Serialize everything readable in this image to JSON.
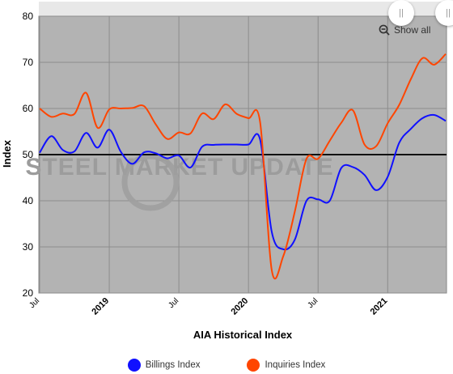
{
  "chart_data": {
    "type": "line",
    "title": "",
    "xlabel": "AIA Historical Index",
    "ylabel": "Index",
    "ylim": [
      20,
      80
    ],
    "yticks": [
      20,
      30,
      40,
      50,
      60,
      70,
      80
    ],
    "reference_line": 50,
    "grid": true,
    "legend_position": "bottom",
    "watermark": "STEEL MARKET UPDATE",
    "x_tick_labels": [
      {
        "label": "Jul",
        "major": false
      },
      {
        "label": "2019",
        "major": true
      },
      {
        "label": "Jul",
        "major": false
      },
      {
        "label": "2020",
        "major": true
      },
      {
        "label": "Jul",
        "major": false
      },
      {
        "label": "2021",
        "major": true
      }
    ],
    "x": [
      "2018-07",
      "2018-08",
      "2018-09",
      "2018-10",
      "2018-11",
      "2018-12",
      "2019-01",
      "2019-02",
      "2019-03",
      "2019-04",
      "2019-05",
      "2019-06",
      "2019-07",
      "2019-08",
      "2019-09",
      "2019-10",
      "2019-11",
      "2019-12",
      "2020-01",
      "2020-02",
      "2020-03",
      "2020-04",
      "2020-05",
      "2020-06",
      "2020-07",
      "2020-08",
      "2020-09",
      "2020-10",
      "2020-11",
      "2020-12",
      "2021-01",
      "2021-02",
      "2021-03",
      "2021-04",
      "2021-05",
      "2021-06"
    ],
    "series": [
      {
        "name": "Billings Index",
        "color": "#1010ff",
        "values": [
          50.4,
          54.0,
          51.0,
          50.7,
          54.7,
          51.5,
          55.4,
          50.6,
          48.0,
          50.5,
          50.3,
          49.2,
          49.8,
          47.2,
          51.7,
          52.1,
          52.2,
          52.2,
          52.2,
          53.3,
          33.3,
          29.5,
          31.6,
          40.0,
          40.3,
          40.0,
          47.1,
          47.3,
          45.6,
          42.3,
          45.2,
          52.6,
          55.6,
          57.9,
          58.6,
          57.3
        ]
      },
      {
        "name": "Inquiries Index",
        "color": "#ff4500",
        "values": [
          60.0,
          58.2,
          58.9,
          58.8,
          63.4,
          55.8,
          59.8,
          60.0,
          60.1,
          60.5,
          56.6,
          53.4,
          54.8,
          54.6,
          58.9,
          57.7,
          60.9,
          58.8,
          57.9,
          57.1,
          25.0,
          28.0,
          37.7,
          49.1,
          49.1,
          53.0,
          56.9,
          59.6,
          52.2,
          51.8,
          56.8,
          60.8,
          66.4,
          70.9,
          69.5,
          71.8
        ]
      }
    ]
  },
  "controls": {
    "show_all_label": "Show all"
  },
  "colors": {
    "plot_background": "#b3b3b3",
    "navigator_background": "#e8e8e8"
  }
}
